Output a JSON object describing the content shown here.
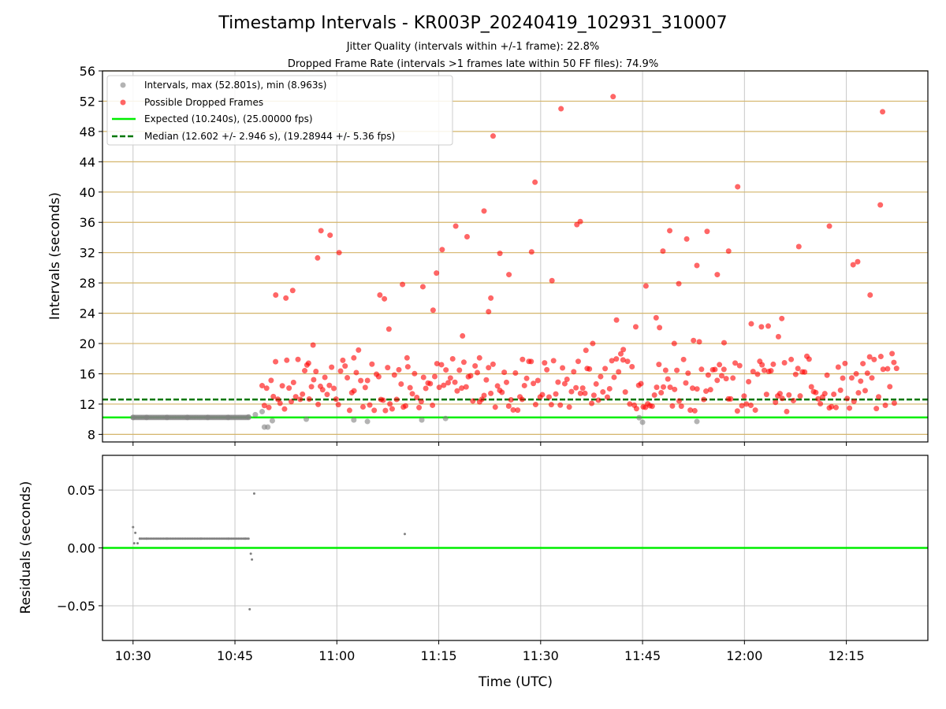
{
  "chart_data": [
    {
      "type": "scatter",
      "title": "Timestamp Intervals - KR003P_20240419_102931_310007",
      "subtitle_lines": [
        "Jitter Quality (intervals within +/-1 frame): 22.8%",
        "Dropped Frame Rate (intervals >1 frames late within 50 FF files): 74.9%"
      ],
      "xlabel": "",
      "ylabel": "Intervals (seconds)",
      "ylim": [
        7,
        56
      ],
      "yticks": [
        8,
        12,
        16,
        20,
        24,
        28,
        32,
        36,
        40,
        44,
        48,
        52,
        56
      ],
      "xlim": [
        "10:25:30",
        "12:27:00"
      ],
      "x_tick_labels": [
        "10:30",
        "10:45",
        "11:00",
        "11:15",
        "11:30",
        "11:45",
        "12:00",
        "12:15"
      ],
      "legend_position": "top-left",
      "legend": [
        "Intervals, max (52.801s), min (8.963s)",
        "Possible Dropped Frames",
        "Expected (10.240s), (25.00000 fps)",
        "Median (12.602 +/- 2.946 s), (19.28944 +/- 5.36 fps)"
      ],
      "expected_interval": 10.24,
      "median_interval": 12.602,
      "interval_points_approx": [
        [
          "10:30:00",
          10.24
        ],
        [
          "10:32:00",
          10.24
        ],
        [
          "10:35:00",
          10.24
        ],
        [
          "10:38:00",
          10.24
        ],
        [
          "10:41:00",
          10.24
        ],
        [
          "10:44:00",
          10.24
        ],
        [
          "10:47:00",
          10.3
        ],
        [
          "10:48:00",
          10.6
        ],
        [
          "10:49:00",
          11.0
        ],
        [
          "10:49:20",
          8.963
        ],
        [
          "10:49:50",
          8.963
        ],
        [
          "10:50:30",
          9.8
        ],
        [
          "10:55:30",
          10.0
        ],
        [
          "11:02:30",
          9.9
        ],
        [
          "11:04:30",
          9.7
        ],
        [
          "11:12:30",
          9.9
        ],
        [
          "11:16:00",
          10.1
        ],
        [
          "11:44:30",
          10.2
        ],
        [
          "11:45:00",
          9.6
        ],
        [
          "11:53:00",
          9.7
        ]
      ],
      "dropped_points_approx": [
        [
          "10:51:00",
          26.4
        ],
        [
          "10:52:30",
          26.0
        ],
        [
          "10:53:30",
          27.0
        ],
        [
          "10:55:50",
          17.4
        ],
        [
          "10:56:30",
          19.8
        ],
        [
          "10:57:10",
          31.3
        ],
        [
          "10:57:40",
          34.9
        ],
        [
          "10:59:00",
          34.3
        ],
        [
          "11:00:20",
          32.0
        ],
        [
          "11:02:30",
          18.1
        ],
        [
          "11:06:20",
          26.4
        ],
        [
          "11:07:00",
          25.9
        ],
        [
          "11:07:40",
          21.9
        ],
        [
          "11:09:40",
          27.8
        ],
        [
          "11:10:20",
          18.1
        ],
        [
          "11:12:40",
          27.5
        ],
        [
          "11:14:10",
          24.4
        ],
        [
          "11:14:40",
          29.3
        ],
        [
          "11:15:30",
          32.4
        ],
        [
          "11:17:30",
          35.5
        ],
        [
          "11:18:30",
          21.0
        ],
        [
          "11:19:10",
          34.1
        ],
        [
          "11:21:00",
          18.1
        ],
        [
          "11:21:40",
          37.5
        ],
        [
          "11:22:20",
          24.2
        ],
        [
          "11:22:40",
          26.0
        ],
        [
          "11:23:00",
          47.4
        ],
        [
          "11:24:00",
          31.9
        ],
        [
          "11:25:20",
          29.1
        ],
        [
          "11:27:20",
          17.9
        ],
        [
          "11:28:40",
          32.1
        ],
        [
          "11:29:10",
          41.3
        ],
        [
          "11:31:40",
          28.3
        ],
        [
          "11:33:00",
          51.0
        ],
        [
          "11:35:20",
          35.7
        ],
        [
          "11:35:50",
          36.1
        ],
        [
          "11:36:40",
          19.1
        ],
        [
          "11:37:40",
          20.0
        ],
        [
          "11:40:40",
          52.6
        ],
        [
          "11:41:10",
          23.1
        ],
        [
          "11:42:10",
          19.2
        ],
        [
          "11:44:00",
          22.2
        ],
        [
          "11:45:30",
          27.6
        ],
        [
          "11:47:00",
          23.4
        ],
        [
          "11:47:30",
          22.1
        ],
        [
          "11:48:00",
          32.2
        ],
        [
          "11:49:00",
          34.9
        ],
        [
          "11:49:40",
          20.0
        ],
        [
          "11:50:20",
          27.9
        ],
        [
          "11:51:30",
          33.8
        ],
        [
          "11:52:30",
          20.4
        ],
        [
          "11:53:00",
          30.3
        ],
        [
          "11:54:30",
          34.8
        ],
        [
          "11:56:00",
          29.1
        ],
        [
          "11:57:00",
          20.1
        ],
        [
          "11:57:40",
          32.2
        ],
        [
          "11:59:00",
          40.7
        ],
        [
          "12:01:00",
          22.6
        ],
        [
          "12:02:30",
          22.2
        ],
        [
          "12:03:30",
          22.3
        ],
        [
          "12:05:00",
          20.9
        ],
        [
          "12:05:30",
          23.3
        ],
        [
          "12:08:00",
          32.8
        ],
        [
          "12:12:30",
          35.5
        ],
        [
          "12:16:00",
          30.4
        ],
        [
          "12:16:40",
          30.8
        ],
        [
          "12:18:30",
          26.4
        ],
        [
          "12:20:00",
          38.3
        ],
        [
          "12:20:20",
          50.6
        ],
        [
          "12:22:00",
          17.5
        ]
      ]
    },
    {
      "type": "scatter",
      "xlabel": "Time (UTC)",
      "ylabel": "Residuals (seconds)",
      "ylim": [
        -0.08,
        0.08
      ],
      "yticks": [
        "0.05",
        "0.00",
        "−0.05"
      ],
      "x_tick_labels": [
        "10:30",
        "10:45",
        "11:00",
        "11:15",
        "11:30",
        "11:45",
        "12:00",
        "12:15"
      ],
      "points_approx": [
        [
          "10:30:00",
          0.018
        ],
        [
          "10:30:10",
          0.004
        ],
        [
          "10:30:20",
          0.013
        ],
        [
          "10:30:40",
          0.004
        ],
        [
          "10:31:00",
          0.008
        ],
        [
          "10:32:00",
          0.008
        ],
        [
          "10:35:00",
          0.008
        ],
        [
          "10:40:00",
          0.008
        ],
        [
          "10:44:00",
          0.008
        ],
        [
          "10:46:30",
          0.008
        ],
        [
          "10:47:10",
          -0.053
        ],
        [
          "10:47:20",
          -0.005
        ],
        [
          "10:47:30",
          -0.01
        ],
        [
          "10:47:50",
          0.047
        ],
        [
          "11:10:00",
          0.012
        ]
      ]
    }
  ],
  "colors": {
    "interval_marker": "#808080",
    "dropped_marker": "#ff0000",
    "expected_line": "#00ee00",
    "median_line": "#007700",
    "hline_grid": "#d4b56a",
    "vgrid": "#c8c8c8"
  }
}
